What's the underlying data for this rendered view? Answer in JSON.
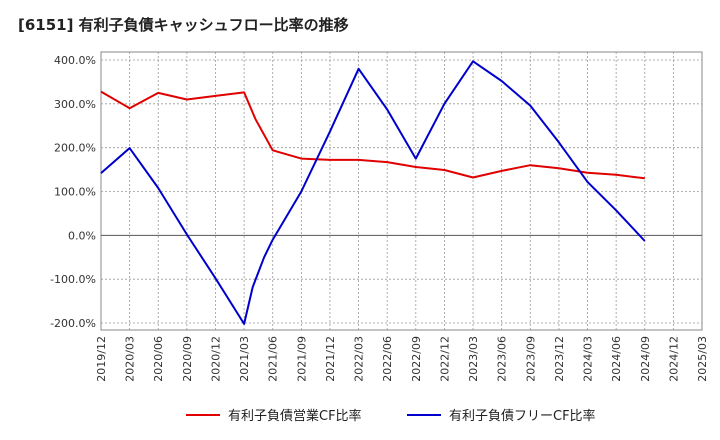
{
  "chart_data": {
    "type": "line",
    "title": "[6151]  有利子負債キャッシュフロー比率の推移",
    "xlabel": "",
    "ylabel": "",
    "ylim": [
      -200,
      400
    ],
    "y_ticks": [
      400,
      300,
      200,
      100,
      0,
      -100,
      -200
    ],
    "y_tick_labels": [
      "400.0%",
      "300.0%",
      "200.0%",
      "100.0%",
      "0.0%",
      "-100.0%",
      "-200.0%"
    ],
    "x_tick_labels": [
      "2019/12",
      "2020/03",
      "2020/06",
      "2020/09",
      "2020/12",
      "2021/03",
      "2021/06",
      "2021/09",
      "2021/12",
      "2022/03",
      "2022/06",
      "2022/09",
      "2022/12",
      "2023/03",
      "2023/06",
      "2023/09",
      "2023/12",
      "2024/03",
      "2024/06",
      "2024/09",
      "2024/12",
      "2025/03"
    ],
    "grid": true,
    "legend_position": "bottom",
    "series": [
      {
        "name": "有利子負債営業CF比率",
        "color": "#e00000",
        "points": [
          [
            0,
            328
          ],
          [
            1,
            290
          ],
          [
            2,
            325
          ],
          [
            3,
            310
          ],
          [
            4,
            318
          ],
          [
            5,
            326
          ],
          [
            5.4,
            265
          ],
          [
            6,
            194
          ],
          [
            7,
            175
          ],
          [
            8,
            172
          ],
          [
            9,
            172
          ],
          [
            10,
            167
          ],
          [
            11,
            156
          ],
          [
            12,
            149
          ],
          [
            13,
            132
          ],
          [
            14,
            147
          ],
          [
            15,
            160
          ],
          [
            16,
            153
          ],
          [
            17,
            143
          ],
          [
            18,
            138
          ],
          [
            19,
            130
          ]
        ]
      },
      {
        "name": "有利子負債フリーCF比率",
        "color": "#0000cc",
        "points": [
          [
            0,
            142
          ],
          [
            1,
            199
          ],
          [
            2,
            108
          ],
          [
            3,
            2
          ],
          [
            4,
            -98
          ],
          [
            5,
            -202
          ],
          [
            5.3,
            -118
          ],
          [
            5.7,
            -50
          ],
          [
            6,
            -10
          ],
          [
            7,
            100
          ],
          [
            8,
            237
          ],
          [
            9,
            380
          ],
          [
            10,
            287
          ],
          [
            11,
            175
          ],
          [
            12,
            300
          ],
          [
            13,
            397
          ],
          [
            14,
            352
          ],
          [
            15,
            296
          ],
          [
            16,
            212
          ],
          [
            17,
            122
          ],
          [
            18,
            57
          ],
          [
            19,
            -13
          ]
        ]
      }
    ]
  }
}
